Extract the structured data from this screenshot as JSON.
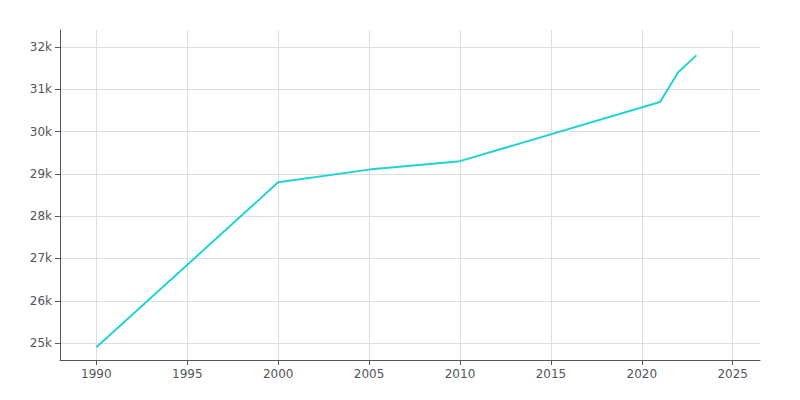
{
  "chart_data": {
    "type": "line",
    "x": [
      1990,
      2000,
      2005,
      2010,
      2021,
      2022,
      2023
    ],
    "values": [
      24900,
      28800,
      29100,
      29300,
      30700,
      31400,
      31800
    ],
    "color": "#22d3d3",
    "xlim": [
      1988,
      2026.5
    ],
    "ylim": [
      24600,
      32400
    ],
    "xticks": [
      1990,
      1995,
      2000,
      2005,
      2010,
      2015,
      2020,
      2025
    ],
    "yticks": [
      {
        "value": 25000,
        "label": "25k"
      },
      {
        "value": 26000,
        "label": "26k"
      },
      {
        "value": 27000,
        "label": "27k"
      },
      {
        "value": 28000,
        "label": "28k"
      },
      {
        "value": 29000,
        "label": "29k"
      },
      {
        "value": 30000,
        "label": "30k"
      },
      {
        "value": 31000,
        "label": "31k"
      },
      {
        "value": 32000,
        "label": "32k"
      }
    ],
    "grid": true
  }
}
